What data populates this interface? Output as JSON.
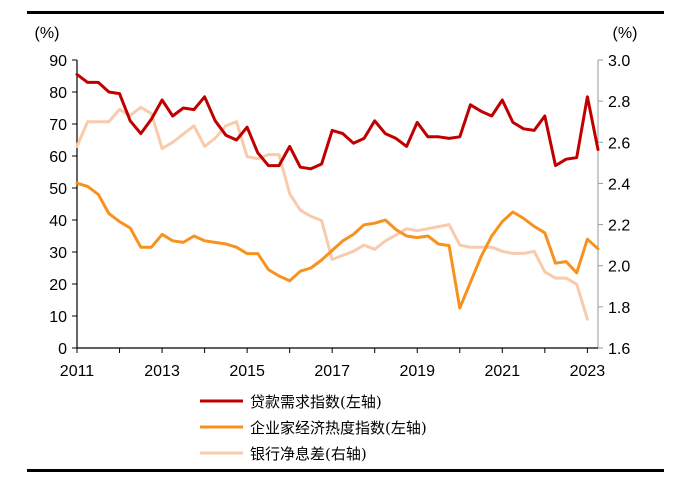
{
  "chart_data": {
    "type": "line",
    "left_unit": "(%)",
    "right_unit": "(%)",
    "left_axis": {
      "min": 0,
      "max": 90,
      "ticks": [
        0,
        10,
        20,
        30,
        40,
        50,
        60,
        70,
        80,
        90
      ]
    },
    "right_axis": {
      "min": 1.6,
      "max": 3.0,
      "ticks": [
        "1.6",
        "1.8",
        "2.0",
        "2.2",
        "2.4",
        "2.6",
        "2.8",
        "3.0"
      ]
    },
    "x_axis": {
      "min": 2011,
      "max": 2023.25,
      "ticks": [
        "2011",
        "2013",
        "2015",
        "2017",
        "2019",
        "2021",
        "2023"
      ]
    },
    "series": [
      {
        "name": "贷款需求指数(左轴)",
        "axis": "left",
        "color": "#c00000",
        "x": [
          2011.0,
          2011.25,
          2011.5,
          2011.75,
          2012.0,
          2012.25,
          2012.5,
          2012.75,
          2013.0,
          2013.25,
          2013.5,
          2013.75,
          2014.0,
          2014.25,
          2014.5,
          2014.75,
          2015.0,
          2015.25,
          2015.5,
          2015.75,
          2016.0,
          2016.25,
          2016.5,
          2016.75,
          2017.0,
          2017.25,
          2017.5,
          2017.75,
          2018.0,
          2018.25,
          2018.5,
          2018.75,
          2019.0,
          2019.25,
          2019.5,
          2019.75,
          2020.0,
          2020.25,
          2020.5,
          2020.75,
          2021.0,
          2021.25,
          2021.5,
          2021.75,
          2022.0,
          2022.25,
          2022.5,
          2022.75,
          2023.0,
          2023.25
        ],
        "values": [
          85.5,
          83,
          83,
          80,
          79.5,
          71,
          67,
          71.5,
          77.5,
          72.5,
          75,
          74.5,
          78.5,
          71,
          66.5,
          65,
          69,
          61,
          57,
          57,
          63,
          56.5,
          56,
          57.5,
          68,
          67,
          64,
          65.5,
          71,
          67,
          65.5,
          63,
          70.5,
          66,
          66,
          65.5,
          66,
          76,
          74,
          72.5,
          77.5,
          70.5,
          68.5,
          68,
          72.5,
          57,
          59,
          59.5,
          78.5,
          62
        ]
      },
      {
        "name": "企业家经济热度指数(左轴)",
        "axis": "left",
        "color": "#f7921e",
        "x": [
          2011.0,
          2011.25,
          2011.5,
          2011.75,
          2012.0,
          2012.25,
          2012.5,
          2012.75,
          2013.0,
          2013.25,
          2013.5,
          2013.75,
          2014.0,
          2014.25,
          2014.5,
          2014.75,
          2015.0,
          2015.25,
          2015.5,
          2015.75,
          2016.0,
          2016.25,
          2016.5,
          2016.75,
          2017.0,
          2017.25,
          2017.5,
          2017.75,
          2018.0,
          2018.25,
          2018.5,
          2018.75,
          2019.0,
          2019.25,
          2019.5,
          2019.75,
          2020.0,
          2020.25,
          2020.5,
          2020.75,
          2021.0,
          2021.25,
          2021.5,
          2021.75,
          2022.0,
          2022.25,
          2022.5,
          2022.75,
          2023.0,
          2023.25
        ],
        "values": [
          51.5,
          50.5,
          48,
          42,
          39.5,
          37.5,
          31.5,
          31.5,
          35.5,
          33.5,
          33,
          35,
          33.5,
          33,
          32.5,
          31.5,
          29.5,
          29.5,
          24.5,
          22.5,
          21,
          24,
          25,
          27.5,
          30.5,
          33.5,
          35.5,
          38.5,
          39,
          40,
          37,
          35,
          34.5,
          35,
          32.5,
          32,
          12.5,
          20.5,
          28.5,
          35,
          39.5,
          42.5,
          40.5,
          38,
          36,
          26.5,
          27,
          23.5,
          34,
          31
        ]
      },
      {
        "name": "银行净息差(右轴)",
        "axis": "right",
        "color": "#f8cbad",
        "x": [
          2011.0,
          2011.25,
          2011.5,
          2011.75,
          2012.0,
          2012.25,
          2012.5,
          2012.75,
          2013.0,
          2013.25,
          2013.5,
          2013.75,
          2014.0,
          2014.25,
          2014.5,
          2014.75,
          2015.0,
          2015.25,
          2015.5,
          2015.75,
          2016.0,
          2016.25,
          2016.5,
          2016.75,
          2017.0,
          2017.25,
          2017.5,
          2017.75,
          2018.0,
          2018.25,
          2018.5,
          2018.75,
          2019.0,
          2019.25,
          2019.5,
          2019.75,
          2020.0,
          2020.25,
          2020.5,
          2020.75,
          2021.0,
          2021.25,
          2021.5,
          2021.75,
          2022.0,
          2022.25,
          2022.5,
          2022.75,
          2023.0
        ],
        "values": [
          2.58,
          2.7,
          2.7,
          2.7,
          2.76,
          2.73,
          2.77,
          2.74,
          2.57,
          2.6,
          2.64,
          2.68,
          2.58,
          2.62,
          2.68,
          2.7,
          2.53,
          2.52,
          2.54,
          2.54,
          2.35,
          2.27,
          2.24,
          2.22,
          2.03,
          2.05,
          2.07,
          2.1,
          2.08,
          2.12,
          2.15,
          2.18,
          2.17,
          2.18,
          2.19,
          2.2,
          2.1,
          2.09,
          2.09,
          2.09,
          2.07,
          2.06,
          2.06,
          2.07,
          1.97,
          1.94,
          1.94,
          1.91,
          1.74
        ]
      }
    ],
    "legend": [
      "贷款需求指数(左轴)",
      "企业家经济热度指数(左轴)",
      "银行净息差(右轴)"
    ],
    "legend_position": "bottom-center",
    "grid": false
  }
}
